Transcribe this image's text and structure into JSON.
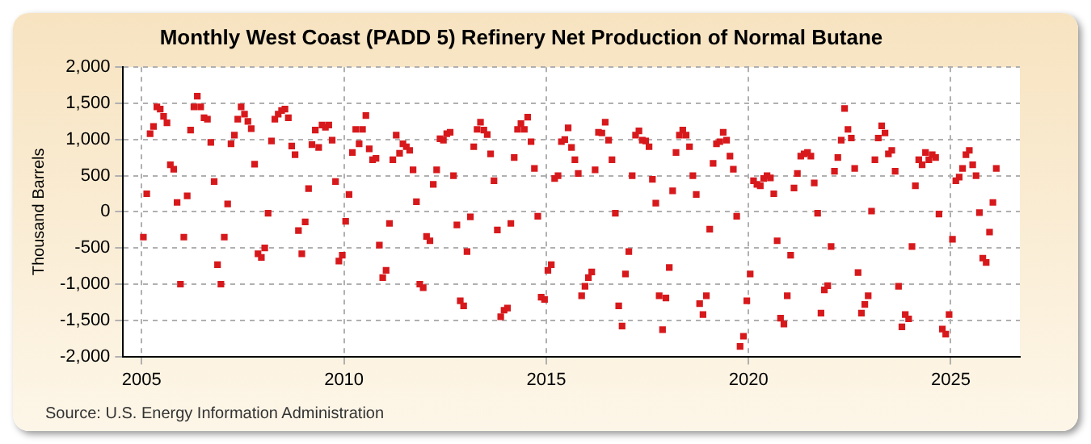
{
  "chart_data": {
    "type": "scatter",
    "title": "Monthly West Coast (PADD 5) Refinery Net Production of Normal Butane",
    "ylabel": "Thousand Barrels",
    "annotations": [
      "Source: U.S. Energy Information Administration"
    ],
    "x": [
      "2005-01",
      "2005-02",
      "2005-03",
      "2005-04",
      "2005-05",
      "2005-06",
      "2005-07",
      "2005-08",
      "2005-09",
      "2005-10",
      "2005-11",
      "2005-12",
      "2006-01",
      "2006-02",
      "2006-03",
      "2006-04",
      "2006-05",
      "2006-06",
      "2006-07",
      "2006-08",
      "2006-09",
      "2006-10",
      "2006-11",
      "2006-12",
      "2007-01",
      "2007-02",
      "2007-03",
      "2007-04",
      "2007-05",
      "2007-06",
      "2007-07",
      "2007-08",
      "2007-09",
      "2007-10",
      "2007-11",
      "2007-12",
      "2008-01",
      "2008-02",
      "2008-03",
      "2008-04",
      "2008-05",
      "2008-06",
      "2008-07",
      "2008-08",
      "2008-09",
      "2008-10",
      "2008-11",
      "2008-12",
      "2009-01",
      "2009-02",
      "2009-03",
      "2009-04",
      "2009-05",
      "2009-06",
      "2009-07",
      "2009-08",
      "2009-09",
      "2009-10",
      "2009-11",
      "2009-12",
      "2010-01",
      "2010-02",
      "2010-03",
      "2010-04",
      "2010-05",
      "2010-06",
      "2010-07",
      "2010-08",
      "2010-09",
      "2010-10",
      "2010-11",
      "2010-12",
      "2011-01",
      "2011-02",
      "2011-03",
      "2011-04",
      "2011-05",
      "2011-06",
      "2011-07",
      "2011-08",
      "2011-09",
      "2011-10",
      "2011-11",
      "2011-12",
      "2012-01",
      "2012-02",
      "2012-03",
      "2012-04",
      "2012-05",
      "2012-06",
      "2012-07",
      "2012-08",
      "2012-09",
      "2012-10",
      "2012-11",
      "2012-12",
      "2013-01",
      "2013-02",
      "2013-03",
      "2013-04",
      "2013-05",
      "2013-06",
      "2013-07",
      "2013-08",
      "2013-09",
      "2013-10",
      "2013-11",
      "2013-12",
      "2014-01",
      "2014-02",
      "2014-03",
      "2014-04",
      "2014-05",
      "2014-06",
      "2014-07",
      "2014-08",
      "2014-09",
      "2014-10",
      "2014-11",
      "2014-12",
      "2015-01",
      "2015-02",
      "2015-03",
      "2015-04",
      "2015-05",
      "2015-06",
      "2015-07",
      "2015-08",
      "2015-09",
      "2015-10",
      "2015-11",
      "2015-12",
      "2016-01",
      "2016-02",
      "2016-03",
      "2016-04",
      "2016-05",
      "2016-06",
      "2016-07",
      "2016-08",
      "2016-09",
      "2016-10",
      "2016-11",
      "2016-12",
      "2017-01",
      "2017-02",
      "2017-03",
      "2017-04",
      "2017-05",
      "2017-06",
      "2017-07",
      "2017-08",
      "2017-09",
      "2017-10",
      "2017-11",
      "2017-12",
      "2018-01",
      "2018-02",
      "2018-03",
      "2018-04",
      "2018-05",
      "2018-06",
      "2018-07",
      "2018-08",
      "2018-09",
      "2018-10",
      "2018-11",
      "2018-12",
      "2019-01",
      "2019-02",
      "2019-03",
      "2019-04",
      "2019-05",
      "2019-06",
      "2019-07",
      "2019-08",
      "2019-09",
      "2019-10",
      "2019-11",
      "2019-12",
      "2020-01",
      "2020-02",
      "2020-03",
      "2020-04",
      "2020-05",
      "2020-06",
      "2020-07",
      "2020-08",
      "2020-09",
      "2020-10",
      "2020-11",
      "2020-12",
      "2021-01",
      "2021-02",
      "2021-03",
      "2021-04",
      "2021-05",
      "2021-06",
      "2021-07",
      "2021-08",
      "2021-09",
      "2021-10",
      "2021-11",
      "2021-12",
      "2022-01",
      "2022-02",
      "2022-03",
      "2022-04",
      "2022-05",
      "2022-06",
      "2022-07",
      "2022-08",
      "2022-09",
      "2022-10",
      "2022-11",
      "2022-12",
      "2023-01",
      "2023-02",
      "2023-03",
      "2023-04",
      "2023-05",
      "2023-06",
      "2023-07",
      "2023-08",
      "2023-09",
      "2023-10",
      "2023-11",
      "2023-12",
      "2024-01",
      "2024-02",
      "2024-03",
      "2024-04",
      "2024-05",
      "2024-06",
      "2024-07",
      "2024-08",
      "2024-09",
      "2024-10",
      "2024-11",
      "2024-12",
      "2025-01",
      "2025-02",
      "2025-03",
      "2025-04",
      "2025-05",
      "2025-06",
      "2025-07",
      "2025-08",
      "2025-09",
      "2025-10",
      "2025-11",
      "2025-12",
      "2026-01",
      "2026-02"
    ],
    "values": [
      -350,
      250,
      1080,
      1180,
      1450,
      1420,
      1320,
      1230,
      650,
      590,
      130,
      -1000,
      -350,
      220,
      1130,
      1450,
      1600,
      1450,
      1300,
      1280,
      960,
      420,
      -730,
      -1000,
      -350,
      110,
      940,
      1060,
      1280,
      1450,
      1350,
      1250,
      1150,
      660,
      -580,
      -630,
      -500,
      -20,
      980,
      1280,
      1350,
      1400,
      1420,
      1300,
      910,
      790,
      -260,
      -580,
      -140,
      320,
      930,
      1130,
      890,
      1200,
      1170,
      1200,
      990,
      420,
      -680,
      -600,
      -130,
      240,
      820,
      1140,
      940,
      1140,
      1330,
      870,
      720,
      740,
      -460,
      -910,
      -810,
      -160,
      720,
      1060,
      810,
      940,
      900,
      850,
      580,
      140,
      -1000,
      -1050,
      -340,
      -400,
      380,
      580,
      1010,
      990,
      1080,
      1100,
      500,
      -180,
      -1230,
      -1300,
      -550,
      -70,
      900,
      1140,
      1240,
      1130,
      1070,
      800,
      430,
      -250,
      -1450,
      -1360,
      -1330,
      -160,
      750,
      1140,
      1220,
      1140,
      1310,
      970,
      600,
      -60,
      -1180,
      -1210,
      -810,
      -730,
      460,
      500,
      970,
      1000,
      1160,
      890,
      720,
      530,
      -1160,
      -1030,
      -910,
      -830,
      580,
      1100,
      1090,
      1240,
      990,
      720,
      -20,
      -1300,
      -1580,
      -860,
      -550,
      500,
      1060,
      1120,
      990,
      980,
      900,
      450,
      120,
      -1160,
      -1630,
      -1190,
      -770,
      290,
      820,
      1060,
      1130,
      1060,
      900,
      500,
      240,
      -1270,
      -1420,
      -1160,
      -240,
      670,
      940,
      970,
      1100,
      990,
      770,
      590,
      -60,
      -1860,
      -1720,
      -1230,
      -860,
      430,
      380,
      360,
      460,
      500,
      470,
      250,
      -400,
      -1470,
      -1550,
      -1160,
      -600,
      330,
      530,
      770,
      800,
      820,
      770,
      400,
      -20,
      -1400,
      -1080,
      -1020,
      -480,
      560,
      750,
      990,
      1430,
      1140,
      1020,
      600,
      -840,
      -1400,
      -1280,
      -1160,
      10,
      720,
      1020,
      1190,
      1090,
      800,
      850,
      560,
      -1030,
      -1590,
      -1420,
      -1480,
      -480,
      360,
      720,
      650,
      820,
      720,
      790,
      750,
      -30,
      -1620,
      -1690,
      -1420,
      -380,
      430,
      480,
      600,
      790,
      850,
      650,
      500,
      -10,
      -640,
      -700,
      -280,
      130,
      600
    ],
    "color": "#d7191c",
    "marker": "square",
    "xlim": [
      "2004-07",
      "2026-09"
    ],
    "xticks": [
      "2005",
      "2010",
      "2015",
      "2020",
      "2025"
    ],
    "ylim": [
      -2000,
      2000
    ],
    "yticks": [
      {
        "value": -2000,
        "label": "-2,000"
      },
      {
        "value": -1500,
        "label": "-1,500"
      },
      {
        "value": -1000,
        "label": "-1,000"
      },
      {
        "value": -500,
        "label": "-500"
      },
      {
        "value": 0,
        "label": "0"
      },
      {
        "value": 500,
        "label": "500"
      },
      {
        "value": 1000,
        "label": "1,000"
      },
      {
        "value": 1500,
        "label": "1,500"
      },
      {
        "value": 2000,
        "label": "2,000"
      }
    ],
    "grid": true,
    "legend": false
  }
}
